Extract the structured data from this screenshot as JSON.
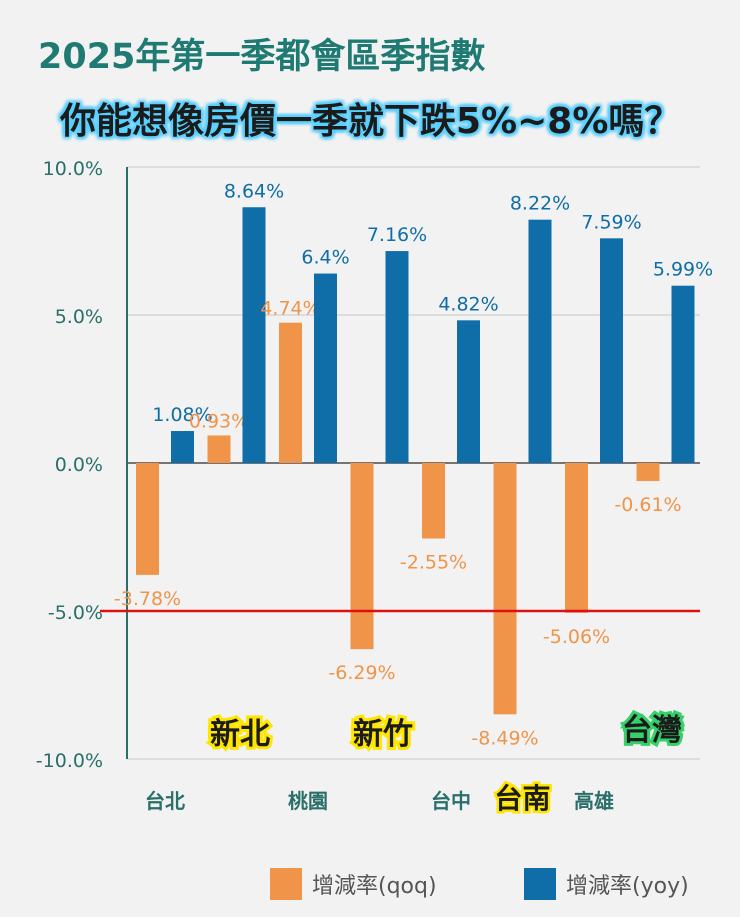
{
  "title": "2025年第一季都會區季指數",
  "subtitle": "你能想像房價一季就下跌5%~8%嗎？",
  "colors": {
    "qoq": "#f0944a",
    "yoy": "#0f6ea8",
    "title": "#1e7a72",
    "threshold": "#dd1111",
    "axis": "#2a6f6a"
  },
  "legend": {
    "qoq_label": "增減率(qoq)",
    "yoy_label": "增減率(yoy)"
  },
  "chart_data": {
    "type": "bar",
    "categories": [
      "台北",
      "新北",
      "桃園",
      "新竹",
      "台中",
      "台南",
      "高雄",
      "台灣"
    ],
    "x_tick_labels_bottom": [
      "台北",
      "桃園",
      "台中",
      "台南",
      "高雄"
    ],
    "highlight_labels": [
      "新北",
      "新竹",
      "台灣"
    ],
    "series": [
      {
        "name": "增減率(qoq)",
        "values": [
          -3.78,
          0.93,
          4.74,
          -6.29,
          -2.55,
          -8.49,
          -5.06,
          -0.61
        ],
        "labels": [
          "-3.78%",
          "0.93%",
          "4.74%",
          "-6.29%",
          "-2.55%",
          "-8.49%",
          "-5.06%",
          "-0.61%"
        ]
      },
      {
        "name": "增減率(yoy)",
        "values": [
          1.08,
          8.64,
          6.4,
          7.16,
          4.82,
          8.22,
          7.59,
          5.99
        ],
        "labels": [
          "1.08%",
          "8.64%",
          "6.4%",
          "7.16%",
          "4.82%",
          "8.22%",
          "7.59%",
          "5.99%"
        ]
      }
    ],
    "ylim": [
      -10,
      10
    ],
    "y_ticks": [
      10,
      5,
      0,
      -5,
      -10
    ],
    "y_tick_labels": [
      "10.0%",
      "5.0%",
      "0.0%",
      "-5.0%",
      "-10.0%"
    ],
    "threshold_line": -5,
    "grid": true,
    "legend_position": "bottom"
  }
}
